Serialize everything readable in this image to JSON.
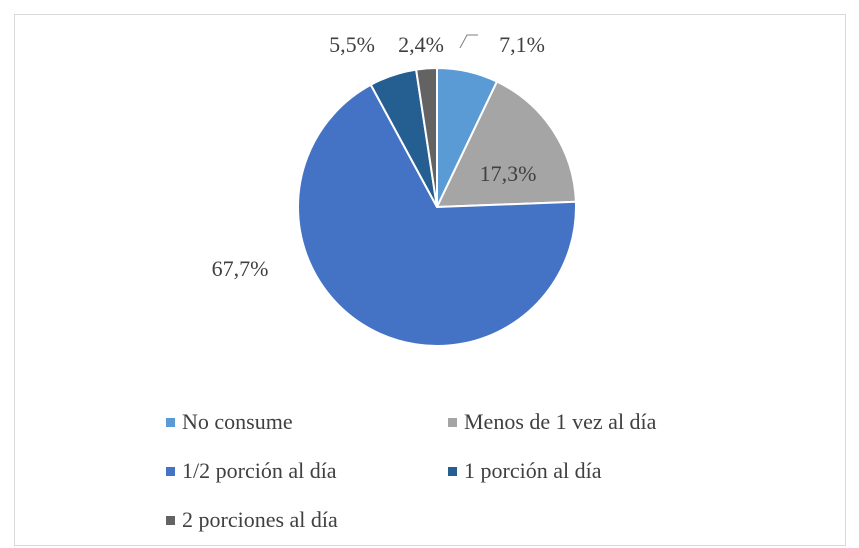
{
  "chart_data": {
    "type": "pie",
    "title": "",
    "categories": [
      "No consume",
      "Menos de 1 vez al día",
      "1/2 porción al día",
      "1 porción al día",
      "2 porciones al día"
    ],
    "values": [
      7.1,
      17.3,
      67.7,
      5.5,
      2.4
    ],
    "labels": [
      "7,1%",
      "17,3%",
      "67,7%",
      "5,5%",
      "2,4%"
    ],
    "colors": [
      "#5b9bd5",
      "#a5a5a5",
      "#4472c4",
      "#255e91",
      "#636363"
    ],
    "legend_position": "bottom"
  }
}
